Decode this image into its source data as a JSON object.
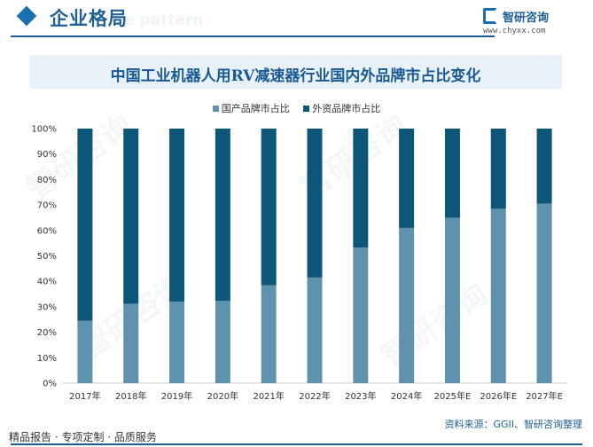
{
  "header": {
    "section_title": "企业格局",
    "section_subtitle": "e pattern",
    "brand_name": "智研咨询",
    "brand_url": "www.chyxx.com"
  },
  "colors": {
    "domestic": "#5f93ad",
    "foreign": "#0b5679",
    "accent": "#1f5f93"
  },
  "chart_data": {
    "type": "bar",
    "stacked": true,
    "title": "中国工业机器人用RV减速器行业国内外品牌市占比变化",
    "categories": [
      "2017年",
      "2018年",
      "2019年",
      "2020年",
      "2021年",
      "2022年",
      "2023年",
      "2024年",
      "2025年E",
      "2026年E",
      "2027年E"
    ],
    "series": [
      {
        "name": "国产品牌市占比",
        "values": [
          24.5,
          31.2,
          32.0,
          32.3,
          38.5,
          41.5,
          53.3,
          61.0,
          65.0,
          68.5,
          70.5
        ]
      },
      {
        "name": "外资品牌市占比",
        "values": [
          75.5,
          68.8,
          68.0,
          67.7,
          61.5,
          58.5,
          46.7,
          39.0,
          35.0,
          31.5,
          29.5
        ]
      }
    ],
    "y_ticks": [
      "0%",
      "10%",
      "20%",
      "30%",
      "40%",
      "50%",
      "60%",
      "70%",
      "80%",
      "90%",
      "100%"
    ],
    "ylim": [
      0,
      100
    ],
    "legend_position": "top",
    "grid": false
  },
  "footer": {
    "left": "精品报告 · 专项定制 · 品质服务",
    "source": "资料来源：GGII、智研咨询整理"
  },
  "watermark": "智研咨询"
}
